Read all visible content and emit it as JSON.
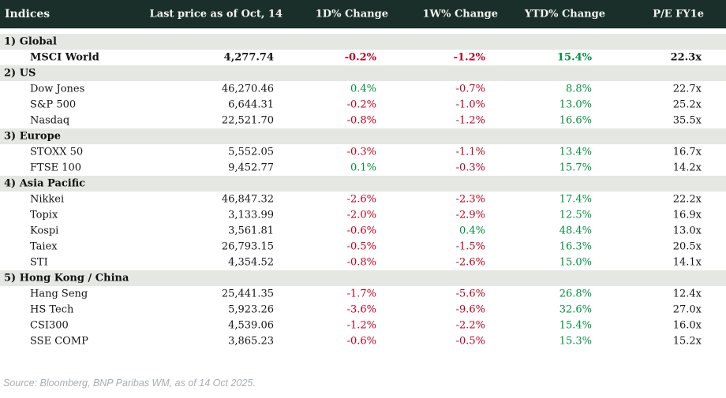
{
  "colors": {
    "header_bg": "#1a2f29",
    "section_bg": "#e5e7e2",
    "positive": "#008f3e",
    "negative": "#c00020"
  },
  "table": {
    "columns": {
      "indices": "Indices",
      "last_price": "Last price as of Oct, 14",
      "d1": "1D% Change",
      "w1": "1W% Change",
      "ytd": "YTD% Change",
      "pe": "P/E FY1e"
    },
    "sections": [
      {
        "label": "1) Global",
        "rows": [
          {
            "name": "MSCI World",
            "bold": true,
            "price": "4,277.74",
            "d1": "-0.2%",
            "w1": "-1.2%",
            "ytd": "15.4%",
            "pe": "22.3x"
          }
        ]
      },
      {
        "label": "2) US",
        "rows": [
          {
            "name": "Dow Jones",
            "price": "46,270.46",
            "d1": "0.4%",
            "w1": "-0.7%",
            "ytd": "8.8%",
            "pe": "22.7x"
          },
          {
            "name": "S&P 500",
            "price": "6,644.31",
            "d1": "-0.2%",
            "w1": "-1.0%",
            "ytd": "13.0%",
            "pe": "25.2x"
          },
          {
            "name": "Nasdaq",
            "price": "22,521.70",
            "d1": "-0.8%",
            "w1": "-1.2%",
            "ytd": "16.6%",
            "pe": "35.5x"
          }
        ]
      },
      {
        "label": "3) Europe",
        "rows": [
          {
            "name": "STOXX 50",
            "price": "5,552.05",
            "d1": "-0.3%",
            "w1": "-1.1%",
            "ytd": "13.4%",
            "pe": "16.7x"
          },
          {
            "name": "FTSE 100",
            "price": "9,452.77",
            "d1": "0.1%",
            "w1": "-0.3%",
            "ytd": "15.7%",
            "pe": "14.2x"
          }
        ]
      },
      {
        "label": "4) Asia Pacific",
        "rows": [
          {
            "name": "Nikkei",
            "price": "46,847.32",
            "d1": "-2.6%",
            "w1": "-2.3%",
            "ytd": "17.4%",
            "pe": "22.2x"
          },
          {
            "name": "Topix",
            "price": "3,133.99",
            "d1": "-2.0%",
            "w1": "-2.9%",
            "ytd": "12.5%",
            "pe": "16.9x"
          },
          {
            "name": "Kospi",
            "price": "3,561.81",
            "d1": "-0.6%",
            "w1": "0.4%",
            "ytd": "48.4%",
            "pe": "13.0x"
          },
          {
            "name": "Taiex",
            "price": "26,793.15",
            "d1": "-0.5%",
            "w1": "-1.5%",
            "ytd": "16.3%",
            "pe": "20.5x"
          },
          {
            "name": "STI",
            "price": "4,354.52",
            "d1": "-0.8%",
            "w1": "-2.6%",
            "ytd": "15.0%",
            "pe": "14.1x"
          }
        ]
      },
      {
        "label": "5) Hong Kong / China",
        "rows": [
          {
            "name": "Hang Seng",
            "price": "25,441.35",
            "d1": "-1.7%",
            "w1": "-5.6%",
            "ytd": "26.8%",
            "pe": "12.4x"
          },
          {
            "name": "HS Tech",
            "price": "5,923.26",
            "d1": "-3.6%",
            "w1": "-9.6%",
            "ytd": "32.6%",
            "pe": "27.0x"
          },
          {
            "name": "CSI300",
            "price": "4,539.06",
            "d1": "-1.2%",
            "w1": "-2.2%",
            "ytd": "15.4%",
            "pe": "16.0x"
          },
          {
            "name": "SSE COMP",
            "price": "3,865.23",
            "d1": "-0.6%",
            "w1": "-0.5%",
            "ytd": "15.3%",
            "pe": "15.2x"
          }
        ]
      }
    ]
  },
  "footer": {
    "source": "Source: Bloomberg, BNP Paribas WM, as of 14 Oct 2025."
  }
}
